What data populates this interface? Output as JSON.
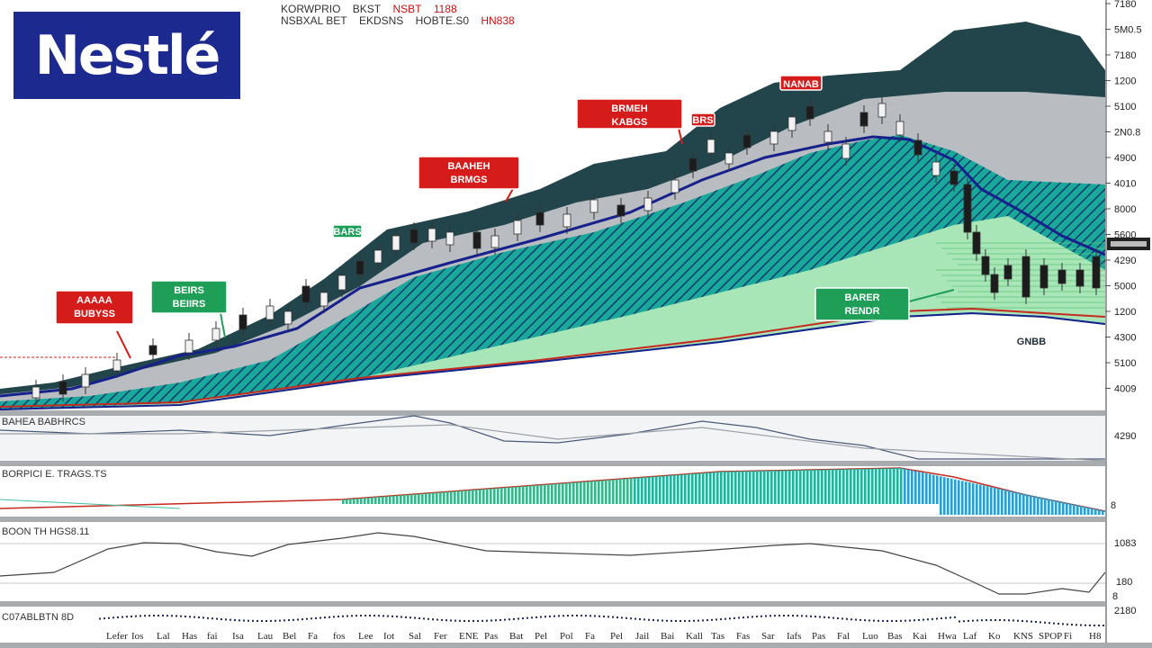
{
  "header": {
    "items": [
      "KORWPRIO",
      "BKST",
      "NSBT",
      "1188"
    ],
    "items2": [
      "NSBXAL BET",
      "EKDSNS",
      "HOBTE.S0",
      "HN838"
    ]
  },
  "logo": {
    "text": "Nestlé",
    "color": "#1c2a8f"
  },
  "colors": {
    "teal": "#1aa89a",
    "navy": "#16218c",
    "mint": "#a8e6b8",
    "green": "#b9ecc1",
    "grey": "#b9bcc0",
    "dark": "#22454c",
    "red": "#d61b1b",
    "label_green": "#1f9e58"
  },
  "chart_data": [
    {
      "type": "area",
      "pane": "price",
      "y_ticks": [
        "7180",
        "5M0.5",
        "7180",
        "1200",
        "5100",
        "2N0.8",
        "4900",
        "4010",
        "8000",
        "5600",
        "4290",
        "5000",
        "1200",
        "4300",
        "5100",
        "4009"
      ],
      "upper_band": [
        [
          0,
          432
        ],
        [
          60,
          425
        ],
        [
          130,
          408
        ],
        [
          220,
          388
        ],
        [
          300,
          350
        ],
        [
          360,
          310
        ],
        [
          430,
          255
        ],
        [
          520,
          235
        ],
        [
          600,
          210
        ],
        [
          660,
          182
        ],
        [
          740,
          168
        ],
        [
          800,
          120
        ],
        [
          860,
          92
        ],
        [
          920,
          84
        ],
        [
          1000,
          78
        ],
        [
          1060,
          34
        ],
        [
          1140,
          24
        ],
        [
          1200,
          40
        ],
        [
          1228,
          78
        ]
      ],
      "mid_band": [
        [
          0,
          438
        ],
        [
          80,
          430
        ],
        [
          150,
          412
        ],
        [
          240,
          392
        ],
        [
          320,
          360
        ],
        [
          400,
          318
        ],
        [
          470,
          270
        ],
        [
          560,
          250
        ],
        [
          640,
          225
        ],
        [
          720,
          210
        ],
        [
          800,
          180
        ],
        [
          880,
          140
        ],
        [
          960,
          110
        ],
        [
          1050,
          102
        ],
        [
          1140,
          102
        ],
        [
          1228,
          108
        ]
      ],
      "low_band": [
        [
          0,
          446
        ],
        [
          100,
          440
        ],
        [
          200,
          425
        ],
        [
          300,
          400
        ],
        [
          380,
          355
        ],
        [
          460,
          308
        ],
        [
          560,
          280
        ],
        [
          660,
          258
        ],
        [
          760,
          225
        ],
        [
          840,
          195
        ],
        [
          900,
          170
        ],
        [
          960,
          156
        ],
        [
          1000,
          150
        ],
        [
          1060,
          168
        ],
        [
          1120,
          200
        ],
        [
          1228,
          205
        ]
      ],
      "blue_line": [
        [
          0,
          440
        ],
        [
          80,
          432
        ],
        [
          130,
          418
        ],
        [
          200,
          395
        ],
        [
          260,
          385
        ],
        [
          330,
          365
        ],
        [
          400,
          320
        ],
        [
          500,
          292
        ],
        [
          600,
          265
        ],
        [
          700,
          236
        ],
        [
          780,
          200
        ],
        [
          850,
          175
        ],
        [
          920,
          160
        ],
        [
          970,
          152
        ],
        [
          1010,
          155
        ],
        [
          1060,
          178
        ],
        [
          1090,
          210
        ],
        [
          1130,
          232
        ],
        [
          1180,
          262
        ],
        [
          1228,
          283
        ]
      ],
      "navy_lower": [
        [
          0,
          455
        ],
        [
          200,
          450
        ],
        [
          400,
          422
        ],
        [
          600,
          402
        ],
        [
          800,
          380
        ],
        [
          1000,
          352
        ],
        [
          1080,
          348
        ],
        [
          1160,
          352
        ],
        [
          1228,
          360
        ]
      ],
      "red_lower": [
        [
          0,
          452
        ],
        [
          200,
          447
        ],
        [
          400,
          420
        ],
        [
          600,
          400
        ],
        [
          800,
          376
        ],
        [
          1000,
          346
        ],
        [
          1080,
          343
        ],
        [
          1160,
          348
        ],
        [
          1228,
          352
        ]
      ],
      "candles": [
        [
          40,
          430,
          442
        ],
        [
          70,
          424,
          438
        ],
        [
          95,
          416,
          430
        ],
        [
          130,
          400,
          412
        ],
        [
          170,
          384,
          394
        ],
        [
          210,
          378,
          392
        ],
        [
          240,
          365,
          378
        ],
        [
          270,
          350,
          366
        ],
        [
          300,
          340,
          355
        ],
        [
          320,
          346,
          360
        ],
        [
          340,
          318,
          336
        ],
        [
          360,
          325,
          340
        ],
        [
          380,
          306,
          322
        ],
        [
          400,
          290,
          305
        ],
        [
          420,
          278,
          292
        ],
        [
          440,
          262,
          278
        ],
        [
          460,
          255,
          270
        ],
        [
          480,
          254,
          268
        ],
        [
          500,
          258,
          272
        ],
        [
          530,
          258,
          276
        ],
        [
          550,
          262,
          275
        ],
        [
          575,
          245,
          260
        ],
        [
          600,
          236,
          250
        ],
        [
          630,
          238,
          252
        ],
        [
          660,
          222,
          236
        ],
        [
          690,
          228,
          240
        ],
        [
          720,
          220,
          234
        ],
        [
          750,
          200,
          214
        ],
        [
          770,
          176,
          190
        ],
        [
          790,
          155,
          170
        ],
        [
          810,
          170,
          182
        ],
        [
          830,
          150,
          164
        ],
        [
          860,
          146,
          160
        ],
        [
          880,
          130,
          145
        ],
        [
          900,
          118,
          132
        ],
        [
          920,
          146,
          158
        ],
        [
          940,
          160,
          176
        ],
        [
          960,
          125,
          140
        ],
        [
          980,
          115,
          130
        ],
        [
          1000,
          135,
          150
        ],
        [
          1020,
          156,
          172
        ],
        [
          1040,
          180,
          195
        ],
        [
          1060,
          190,
          205
        ],
        [
          1075,
          205,
          258
        ],
        [
          1085,
          258,
          282
        ],
        [
          1095,
          285,
          305
        ],
        [
          1105,
          305,
          325
        ],
        [
          1120,
          295,
          310
        ],
        [
          1140,
          285,
          330
        ],
        [
          1160,
          295,
          320
        ],
        [
          1180,
          300,
          315
        ],
        [
          1200,
          300,
          318
        ],
        [
          1218,
          285,
          320
        ]
      ],
      "annotations": [
        {
          "text": "AAAAA",
          "sub": "BUBYSS",
          "color": "red",
          "pos": "left"
        },
        {
          "text": "BEIRS",
          "sub": "BEIIRS",
          "color": "green",
          "pos": "left"
        },
        {
          "text": "BAAHEH",
          "sub": "BRMGS",
          "color": "red",
          "pos": "center-left"
        },
        {
          "text": "BRMEH",
          "sub": "KABGS",
          "color": "red",
          "pos": "center"
        },
        {
          "text": "BRS",
          "color": "red",
          "pos": "center"
        },
        {
          "text": "NANAB",
          "color": "red",
          "pos": "top-right"
        },
        {
          "text": "BARER",
          "sub": "RENDR",
          "color": "green",
          "pos": "right"
        },
        {
          "text": "BARS",
          "color": "green",
          "pos": "center-left"
        },
        {
          "text": "GNBB",
          "color": "dark",
          "pos": "right"
        }
      ]
    },
    {
      "type": "line",
      "pane": "indicator-1",
      "title": "BAHEA BABHRCS",
      "y_ticks": [
        "4290"
      ],
      "series": [
        {
          "values": [
            [
              0,
              478
            ],
            [
              100,
              482
            ],
            [
              200,
              478
            ],
            [
              300,
              484
            ],
            [
              400,
              470
            ],
            [
              460,
              462
            ],
            [
              500,
              470
            ],
            [
              560,
              490
            ],
            [
              620,
              492
            ],
            [
              700,
              482
            ],
            [
              780,
              468
            ],
            [
              840,
              475
            ],
            [
              900,
              488
            ],
            [
              960,
              495
            ],
            [
              1020,
              510
            ],
            [
              1228,
              510
            ]
          ]
        },
        {
          "values": [
            [
              0,
              482
            ],
            [
              200,
              482
            ],
            [
              400,
              475
            ],
            [
              500,
              472
            ],
            [
              620,
              488
            ],
            [
              780,
              475
            ],
            [
              960,
              498
            ],
            [
              1228,
              512
            ]
          ]
        }
      ]
    },
    {
      "type": "bar",
      "pane": "indicator-2",
      "title": "BORPICI E. TRAGS.TS",
      "y_ticks": [
        "8"
      ],
      "bars_from_x": 380,
      "bars_to_x": 1228
    },
    {
      "type": "line",
      "pane": "indicator-3",
      "title": "BOON TH HGS8.11",
      "y_ticks": [
        "1083",
        "180",
        "8"
      ],
      "series": [
        {
          "values": [
            [
              0,
              640
            ],
            [
              60,
              636
            ],
            [
              120,
              610
            ],
            [
              160,
              603
            ],
            [
              200,
              604
            ],
            [
              240,
              613
            ],
            [
              280,
              618
            ],
            [
              320,
              605
            ],
            [
              380,
              598
            ],
            [
              420,
              592
            ],
            [
              460,
              596
            ],
            [
              500,
              604
            ],
            [
              540,
              612
            ],
            [
              600,
              614
            ],
            [
              700,
              617
            ],
            [
              780,
              612
            ],
            [
              860,
              606
            ],
            [
              900,
              604
            ],
            [
              940,
              608
            ],
            [
              980,
              612
            ],
            [
              1040,
              628
            ],
            [
              1080,
              646
            ],
            [
              1110,
              660
            ],
            [
              1140,
              660
            ],
            [
              1180,
              654
            ],
            [
              1210,
              658
            ],
            [
              1228,
              636
            ]
          ]
        }
      ]
    },
    {
      "type": "scatter",
      "pane": "indicator-4",
      "title": "C07ABLBTN 8D",
      "y_ticks": [
        "2180"
      ],
      "x_ticks": [
        "Lefer",
        "Ios",
        "Lal",
        "Has",
        "fai",
        "Isa",
        "Lau",
        "Bel",
        "Fa",
        "fos",
        "Lee",
        "Iot",
        "Sal",
        "Fer",
        "ENE",
        "Pas",
        "Bat",
        "Pel",
        "Pol",
        "Fa",
        "Pel",
        "Jail",
        "Bai",
        "Kall",
        "Tas",
        "Fas",
        "Sar",
        "Iafs",
        "Pas",
        "Fal",
        "Luo",
        "Bas",
        "Kai",
        "Hwa",
        "Laf",
        "Ko",
        "KNS",
        "SPOP",
        "Fi",
        "H8"
      ]
    }
  ]
}
